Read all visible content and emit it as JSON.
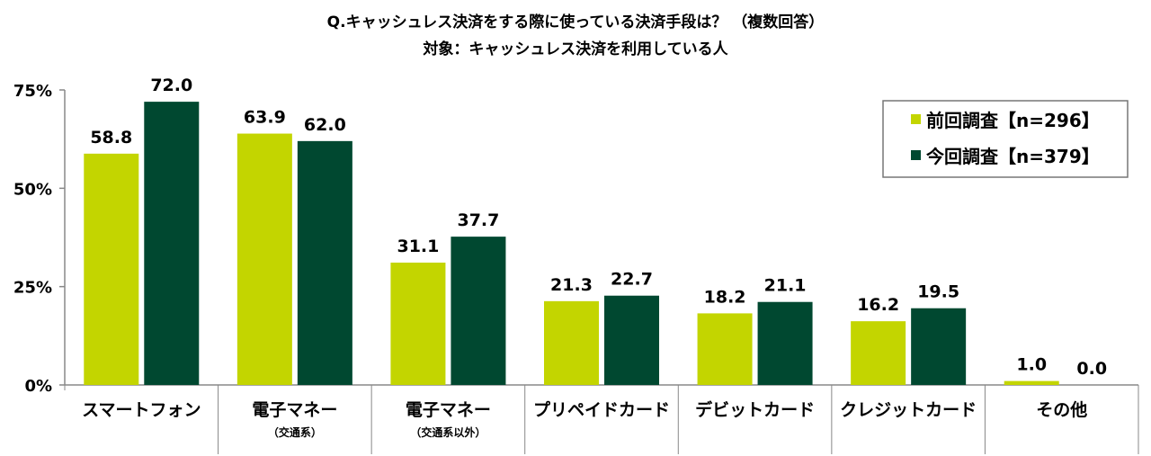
{
  "chart_data": {
    "type": "bar",
    "title": "Q.キャッシュレス決済をする際に使っている決済手段は？ （複数回答）",
    "subtitle": "対象：キャッシュレス決済を利用している人",
    "categories": [
      {
        "label": "スマートフォン",
        "sub": ""
      },
      {
        "label": "電子マネー",
        "sub": "（交通系）"
      },
      {
        "label": "電子マネー",
        "sub": "（交通系以外）"
      },
      {
        "label": "プリペイドカード",
        "sub": ""
      },
      {
        "label": "デビットカード",
        "sub": ""
      },
      {
        "label": "クレジットカード",
        "sub": ""
      },
      {
        "label": "その他",
        "sub": ""
      }
    ],
    "series": [
      {
        "name": "前回調査【n=296】",
        "color": "#c3d500",
        "values": [
          58.8,
          63.9,
          31.1,
          21.3,
          18.2,
          16.2,
          1.0
        ]
      },
      {
        "name": "今回調査【n=379】",
        "color": "#004830",
        "values": [
          72.0,
          62.0,
          37.7,
          22.7,
          21.1,
          19.5,
          0.0
        ]
      }
    ],
    "yticks": [
      "0%",
      "25%",
      "50%",
      "75%"
    ],
    "ylim": [
      0,
      75
    ],
    "grid": false,
    "legend": "top-right"
  }
}
